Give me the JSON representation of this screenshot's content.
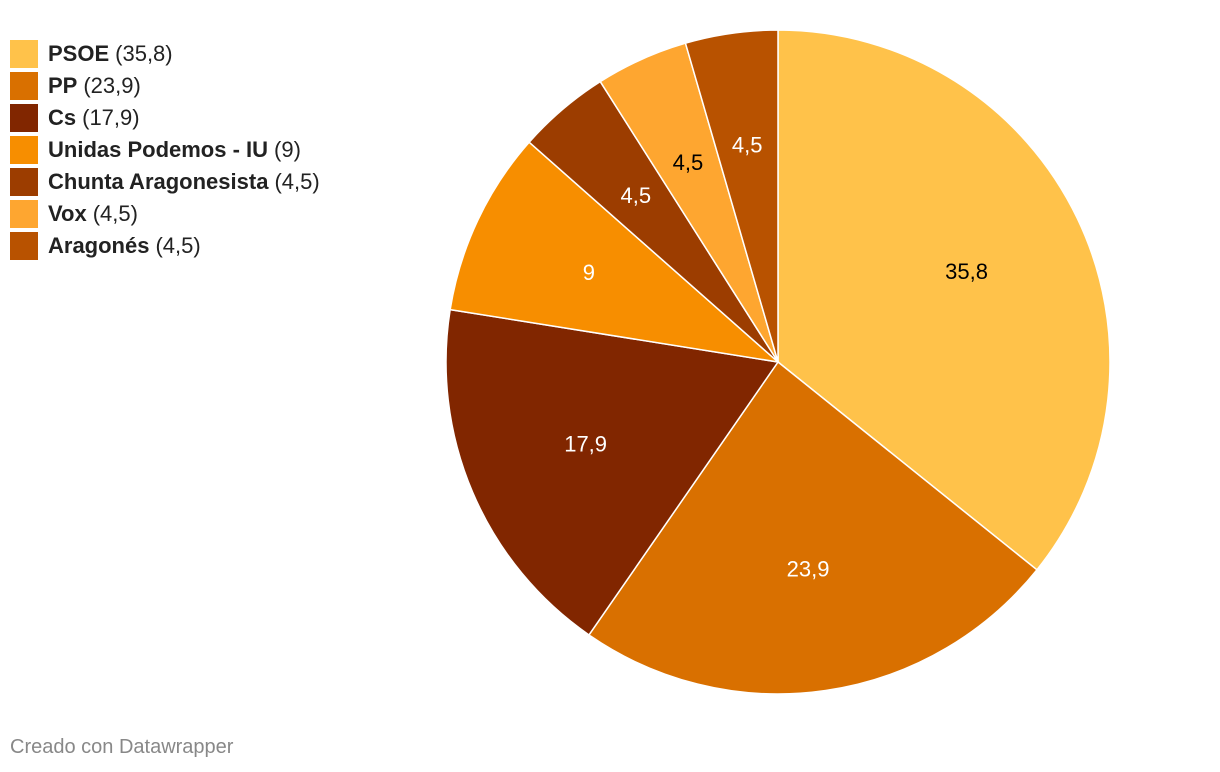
{
  "chart_data": {
    "type": "pie",
    "categories": [
      "PSOE",
      "PP",
      "Cs",
      "Unidas Podemos - IU",
      "Chunta Aragonesista",
      "Vox",
      "Aragonés"
    ],
    "values": [
      35.8,
      23.9,
      17.9,
      9,
      4.5,
      4.5,
      4.5
    ],
    "value_labels": [
      "35,8",
      "23,9",
      "17,9",
      "9",
      "4,5",
      "4,5",
      "4,5"
    ],
    "colors": [
      "#ffc24a",
      "#d97000",
      "#812600",
      "#f78e00",
      "#9c3d00",
      "#fea630",
      "#b85200"
    ],
    "label_colors": [
      "#000000",
      "#ffffff",
      "#ffffff",
      "#ffffff",
      "#ffffff",
      "#000000",
      "#ffffff"
    ],
    "legend": [
      {
        "name": "PSOE",
        "value": "(35,8)"
      },
      {
        "name": "PP",
        "value": "(23,9)"
      },
      {
        "name": "Cs",
        "value": "(17,9)"
      },
      {
        "name": "Unidas Podemos - IU",
        "value": "(9)"
      },
      {
        "name": "Chunta Aragonesista",
        "value": "(4,5)"
      },
      {
        "name": "Vox",
        "value": "(4,5)"
      },
      {
        "name": "Aragonés",
        "value": "(4,5)"
      }
    ],
    "legend_position": "top-left",
    "title": "",
    "start_angle": "top",
    "direction": "clockwise"
  },
  "credit": "Creado con Datawrapper"
}
